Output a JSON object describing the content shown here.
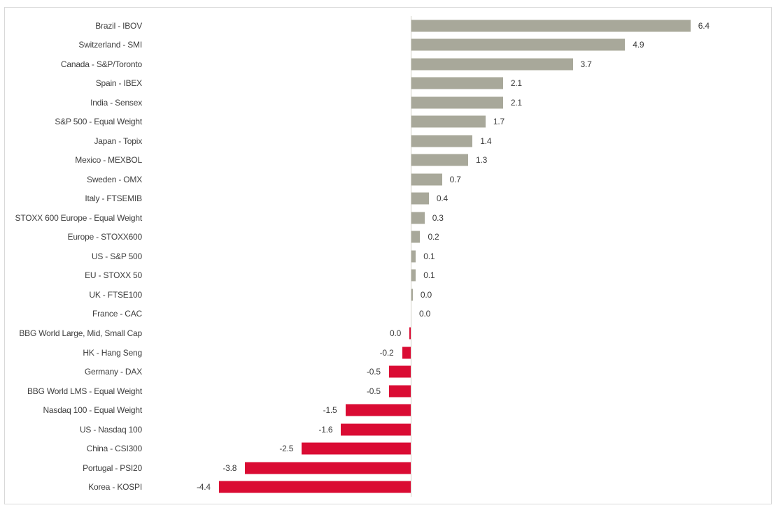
{
  "chart_data": {
    "type": "bar",
    "orientation": "horizontal",
    "title": "",
    "xlabel": "",
    "ylabel": "",
    "legend": "none",
    "grid": "off",
    "zero_baseline": true,
    "xlim": [
      -5.0,
      7.6
    ],
    "colors": {
      "positive": "#a8a89a",
      "negative": "#da0b33",
      "axis_line": "#d2d1c8",
      "text": "#3e3e3e",
      "frame_border": "#d9d9d9"
    },
    "items": [
      {
        "label": "Brazil - IBOV",
        "value": 6.4,
        "display": "6.4"
      },
      {
        "label": "Switzerland - SMI",
        "value": 4.9,
        "display": "4.9"
      },
      {
        "label": "Canada - S&P/Toronto",
        "value": 3.7,
        "display": "3.7"
      },
      {
        "label": "Spain - IBEX",
        "value": 2.1,
        "display": "2.1"
      },
      {
        "label": "India - Sensex",
        "value": 2.1,
        "display": "2.1"
      },
      {
        "label": "S&P 500 - Equal Weight",
        "value": 1.7,
        "display": "1.7"
      },
      {
        "label": "Japan - Topix",
        "value": 1.4,
        "display": "1.4"
      },
      {
        "label": "Mexico - MEXBOL",
        "value": 1.3,
        "display": "1.3"
      },
      {
        "label": "Sweden - OMX",
        "value": 0.7,
        "display": "0.7"
      },
      {
        "label": "Italy - FTSEMIB",
        "value": 0.4,
        "display": "0.4"
      },
      {
        "label": "STOXX 600 Europe - Equal Weight",
        "value": 0.3,
        "display": "0.3"
      },
      {
        "label": "Europe - STOXX600",
        "value": 0.2,
        "display": "0.2"
      },
      {
        "label": "US - S&P 500",
        "value": 0.1,
        "display": "0.1"
      },
      {
        "label": "EU - STOXX 50",
        "value": 0.1,
        "display": "0.1"
      },
      {
        "label": "UK - FTSE100",
        "value": 0.03,
        "display": "0.0"
      },
      {
        "label": "France - CAC",
        "value": 0.0,
        "display": "0.0"
      },
      {
        "label": "BBG World Large, Mid, Small Cap",
        "value": -0.03,
        "display": "0.0"
      },
      {
        "label": "HK - Hang Seng",
        "value": -0.2,
        "display": "-0.2"
      },
      {
        "label": "Germany - DAX",
        "value": -0.5,
        "display": "-0.5"
      },
      {
        "label": "BBG World LMS - Equal Weight",
        "value": -0.5,
        "display": "-0.5"
      },
      {
        "label": "Nasdaq 100 - Equal Weight",
        "value": -1.5,
        "display": "-1.5"
      },
      {
        "label": "US - Nasdaq 100",
        "value": -1.6,
        "display": "-1.6"
      },
      {
        "label": "China - CSI300",
        "value": -2.5,
        "display": "-2.5"
      },
      {
        "label": "Portugal - PSI20",
        "value": -3.8,
        "display": "-3.8"
      },
      {
        "label": "Korea - KOSPI",
        "value": -4.4,
        "display": "-4.4"
      }
    ]
  }
}
